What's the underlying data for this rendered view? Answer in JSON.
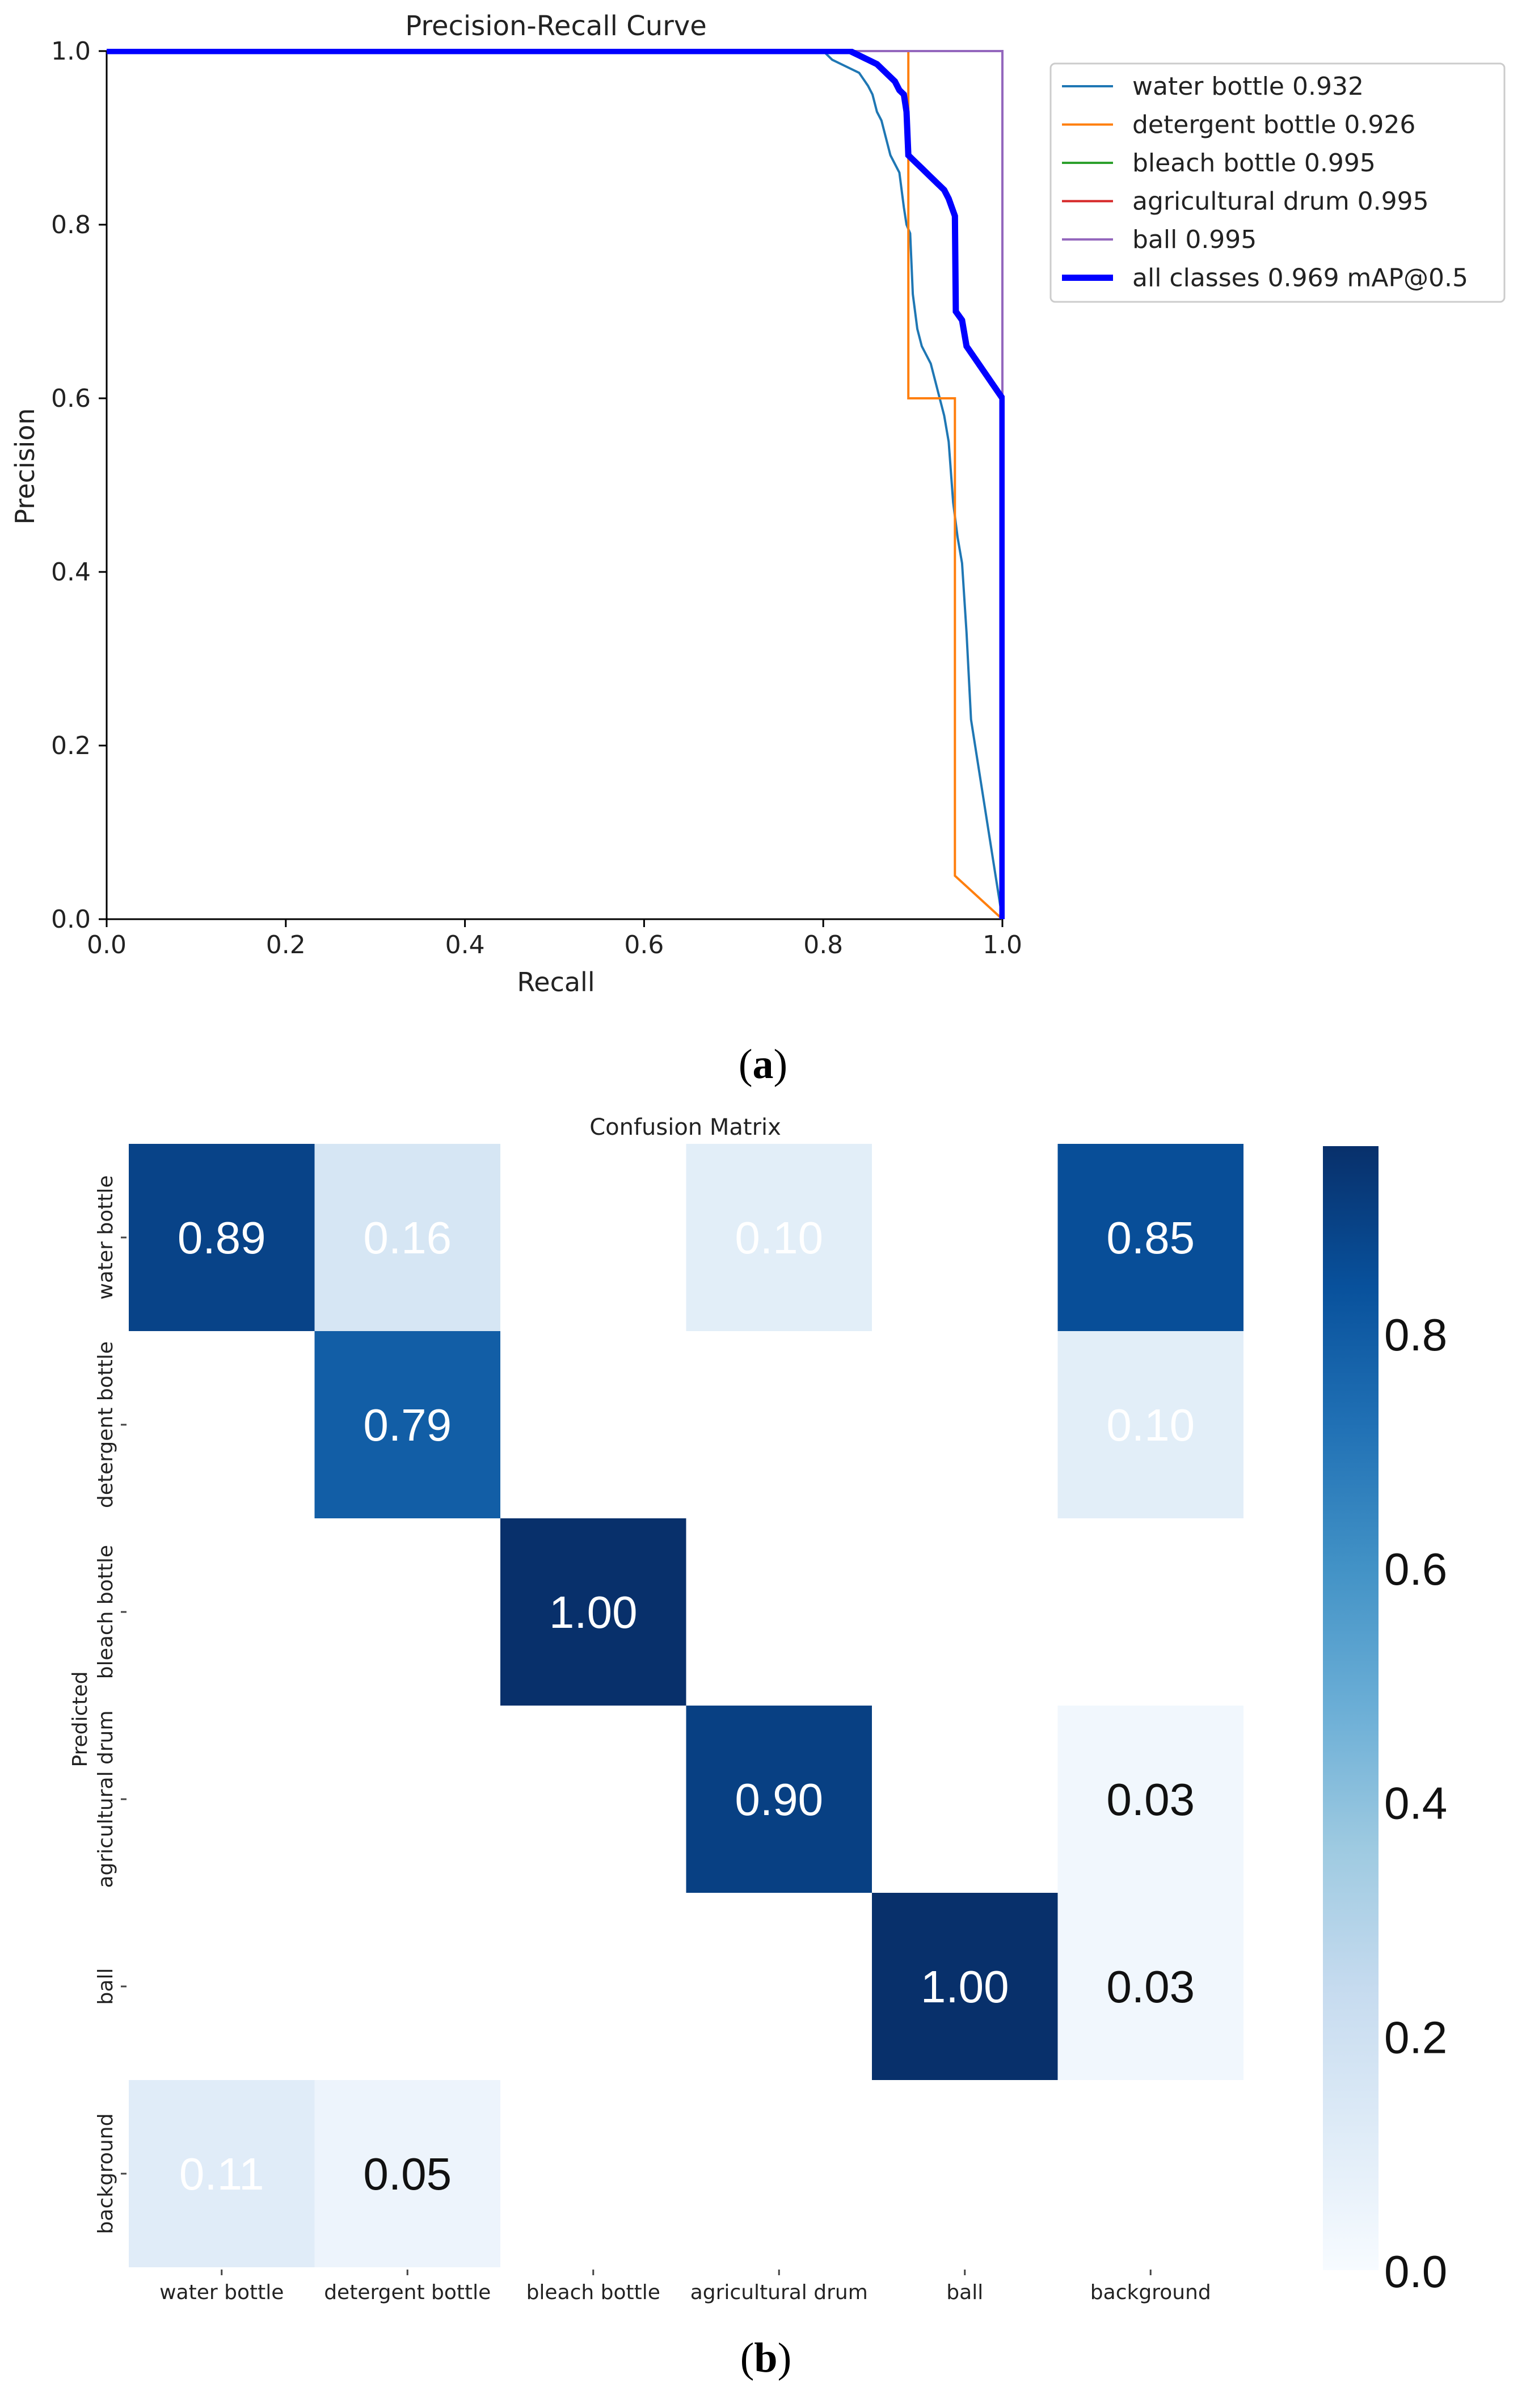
{
  "chart_data": [
    {
      "type": "line",
      "panel_label": "a",
      "title": "Precision-Recall Curve",
      "xlabel": "Recall",
      "ylabel": "Precision",
      "xlim": [
        0.0,
        1.0
      ],
      "ylim": [
        0.0,
        1.0
      ],
      "xticks": [
        "0.0",
        "0.2",
        "0.4",
        "0.6",
        "0.8",
        "1.0"
      ],
      "yticks": [
        "0.0",
        "0.2",
        "0.4",
        "0.6",
        "0.8",
        "1.0"
      ],
      "legend_position": "outside-right-top",
      "series": [
        {
          "name": "water bottle 0.932",
          "color": "#1f77b4",
          "width": "thin",
          "points": [
            [
              0,
              1
            ],
            [
              0.8,
              1.0
            ],
            [
              0.81,
              0.99
            ],
            [
              0.82,
              0.985
            ],
            [
              0.84,
              0.975
            ],
            [
              0.85,
              0.96
            ],
            [
              0.855,
              0.95
            ],
            [
              0.86,
              0.93
            ],
            [
              0.865,
              0.92
            ],
            [
              0.87,
              0.9
            ],
            [
              0.875,
              0.88
            ],
            [
              0.88,
              0.87
            ],
            [
              0.885,
              0.86
            ],
            [
              0.89,
              0.82
            ],
            [
              0.893,
              0.8
            ],
            [
              0.897,
              0.79
            ],
            [
              0.9,
              0.72
            ],
            [
              0.905,
              0.68
            ],
            [
              0.91,
              0.66
            ],
            [
              0.915,
              0.65
            ],
            [
              0.92,
              0.64
            ],
            [
              0.925,
              0.62
            ],
            [
              0.93,
              0.6
            ],
            [
              0.935,
              0.58
            ],
            [
              0.94,
              0.55
            ],
            [
              0.945,
              0.48
            ],
            [
              0.95,
              0.44
            ],
            [
              0.955,
              0.41
            ],
            [
              0.96,
              0.33
            ],
            [
              0.965,
              0.23
            ],
            [
              1.0,
              0.0
            ]
          ]
        },
        {
          "name": "detergent bottle 0.926",
          "color": "#ff7f0e",
          "width": "thin",
          "points": [
            [
              0,
              1
            ],
            [
              0.895,
              1
            ],
            [
              0.895,
              0.6
            ],
            [
              0.947,
              0.6
            ],
            [
              0.947,
              0.05
            ],
            [
              1.0,
              0.0
            ]
          ]
        },
        {
          "name": "bleach bottle 0.995",
          "color": "#2ca02c",
          "width": "thin",
          "points": [
            [
              0,
              1
            ],
            [
              1,
              1
            ],
            [
              1,
              0
            ]
          ]
        },
        {
          "name": "agricultural drum 0.995",
          "color": "#d62728",
          "width": "thin",
          "points": [
            [
              0,
              1
            ],
            [
              1,
              1
            ],
            [
              1,
              0
            ]
          ]
        },
        {
          "name": "ball 0.995",
          "color": "#9467bd",
          "width": "thin",
          "points": [
            [
              0,
              1
            ],
            [
              1,
              1
            ],
            [
              1,
              0
            ]
          ]
        },
        {
          "name": "all classes 0.969 mAP@0.5",
          "color": "#0000ff",
          "width": "thick",
          "points": [
            [
              0,
              1
            ],
            [
              0.83,
              1.0
            ],
            [
              0.84,
              0.995
            ],
            [
              0.85,
              0.99
            ],
            [
              0.86,
              0.985
            ],
            [
              0.87,
              0.975
            ],
            [
              0.88,
              0.965
            ],
            [
              0.885,
              0.955
            ],
            [
              0.89,
              0.95
            ],
            [
              0.893,
              0.93
            ],
            [
              0.895,
              0.88
            ],
            [
              0.9,
              0.875
            ],
            [
              0.91,
              0.865
            ],
            [
              0.92,
              0.855
            ],
            [
              0.93,
              0.845
            ],
            [
              0.935,
              0.84
            ],
            [
              0.94,
              0.83
            ],
            [
              0.947,
              0.81
            ],
            [
              0.948,
              0.7
            ],
            [
              0.955,
              0.69
            ],
            [
              0.96,
              0.66
            ],
            [
              0.97,
              0.645
            ],
            [
              0.98,
              0.63
            ],
            [
              0.99,
              0.615
            ],
            [
              1.0,
              0.6
            ],
            [
              1.0,
              0.0
            ]
          ]
        }
      ]
    },
    {
      "type": "heatmap",
      "panel_label": "b",
      "title": "Confusion Matrix",
      "ylabel": "Predicted",
      "rows": [
        "water bottle",
        "detergent bottle",
        "bleach bottle",
        "agricultural drum",
        "ball",
        "background"
      ],
      "cols": [
        "water bottle",
        "detergent bottle",
        "bleach bottle",
        "agricultural drum",
        "ball",
        "background"
      ],
      "values": [
        [
          0.89,
          0.16,
          null,
          0.1,
          null,
          0.85
        ],
        [
          null,
          0.79,
          null,
          null,
          null,
          0.1
        ],
        [
          null,
          null,
          1.0,
          null,
          null,
          null
        ],
        [
          null,
          null,
          null,
          0.9,
          null,
          0.03
        ],
        [
          null,
          null,
          null,
          null,
          1.0,
          0.03
        ],
        [
          0.11,
          0.05,
          null,
          null,
          null,
          null
        ]
      ],
      "colorbar": {
        "min": 0.0,
        "max": 0.96,
        "ticks": [
          "0.0",
          "0.2",
          "0.4",
          "0.6",
          "0.8"
        ]
      },
      "colormap": "Blues"
    }
  ]
}
